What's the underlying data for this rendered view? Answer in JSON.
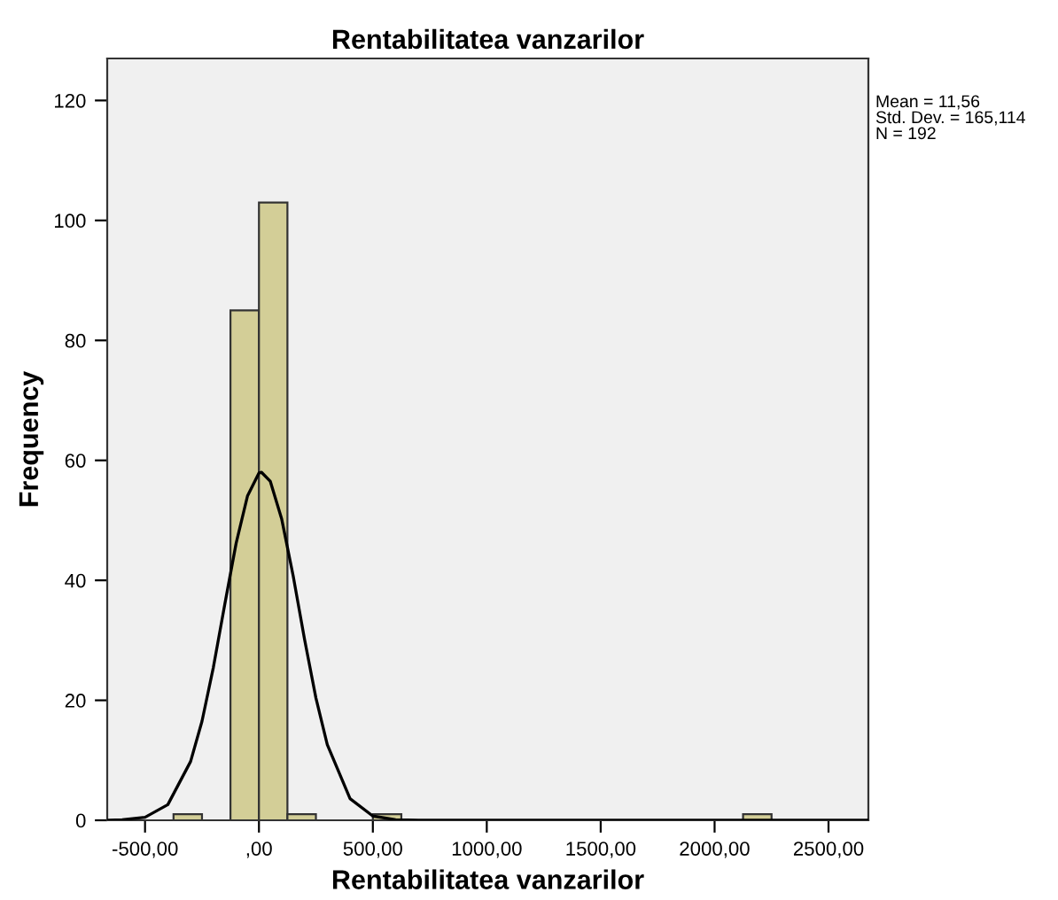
{
  "chart_data": {
    "type": "histogram",
    "title": "Rentabilitatea vanzarilor",
    "xlabel": "Rentabilitatea vanzarilor",
    "ylabel": "Frequency",
    "series": [
      {
        "color": "#d3ce97",
        "bins": [
          -375,
          -250,
          -125,
          0,
          125,
          250,
          375,
          500,
          625,
          750,
          875,
          1000,
          1125,
          1250,
          1375,
          1500,
          1625,
          1750,
          1875,
          2000,
          2125,
          2250
        ],
        "values": [
          1,
          0,
          85,
          103,
          1,
          0,
          0,
          1,
          0,
          0,
          0,
          0,
          0,
          0,
          0,
          0,
          0,
          0,
          0,
          0,
          1
        ]
      },
      {
        "type": "line",
        "color": "#000000",
        "x": [
          -660,
          -600,
          -500,
          -400,
          -300,
          -250,
          -200,
          -150,
          -100,
          -50,
          0,
          11.56,
          50,
          100,
          150,
          200,
          250,
          300,
          400,
          500,
          600,
          700,
          1000,
          1500,
          2000,
          2500,
          2670
        ],
        "values": [
          0,
          0.1,
          0.5,
          2.6,
          9.8,
          16.5,
          25.5,
          36,
          46.2,
          54.1,
          57.9,
          58,
          56.5,
          50.2,
          40.8,
          30.2,
          20.4,
          12.6,
          3.6,
          0.7,
          0.1,
          0,
          0,
          0,
          0,
          0,
          0
        ]
      }
    ],
    "xlim": [
      -666,
      2675
    ],
    "ylim": [
      0,
      127
    ],
    "xticks": [
      {
        "value": -500,
        "label": "-500,00"
      },
      {
        "value": 0,
        "label": ",00"
      },
      {
        "value": 500,
        "label": "500,00"
      },
      {
        "value": 1000,
        "label": "1000,00"
      },
      {
        "value": 1500,
        "label": "1500,00"
      },
      {
        "value": 2000,
        "label": "2000,00"
      },
      {
        "value": 2500,
        "label": "2500,00"
      }
    ],
    "yticks": [
      0,
      20,
      40,
      60,
      80,
      100,
      120
    ],
    "annotations": [
      "Mean = 11,56",
      "Std. Dev. = 165,114",
      "N = 192"
    ],
    "grid": false,
    "legend": false
  }
}
